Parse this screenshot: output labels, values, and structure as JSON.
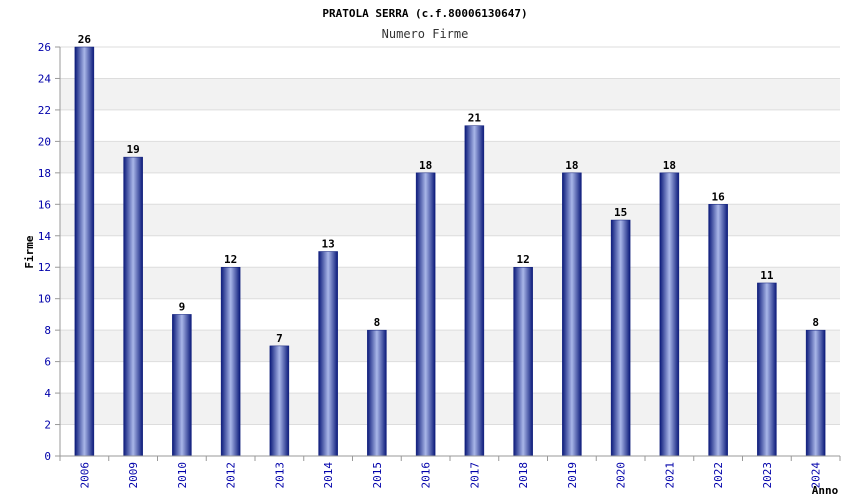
{
  "chart_data": {
    "type": "bar",
    "title": "PRATOLA SERRA (c.f.80006130647)",
    "subtitle": "Numero Firme",
    "xlabel": "Anno",
    "ylabel": "Firme",
    "categories": [
      "2006",
      "2009",
      "2010",
      "2012",
      "2013",
      "2014",
      "2015",
      "2016",
      "2017",
      "2018",
      "2019",
      "2020",
      "2021",
      "2022",
      "2023",
      "2024"
    ],
    "values": [
      26,
      19,
      9,
      12,
      7,
      13,
      8,
      18,
      21,
      12,
      18,
      15,
      18,
      16,
      11,
      8
    ],
    "ylim": [
      0,
      26
    ],
    "yticks": [
      0,
      2,
      4,
      6,
      8,
      10,
      12,
      14,
      16,
      18,
      20,
      22,
      24,
      26
    ],
    "grid": true,
    "colors": {
      "bar_dark": "#0b1a7a",
      "bar_light": "#a9b6e8",
      "band": "#f2f2f2",
      "tick_text": "#0000aa"
    }
  }
}
